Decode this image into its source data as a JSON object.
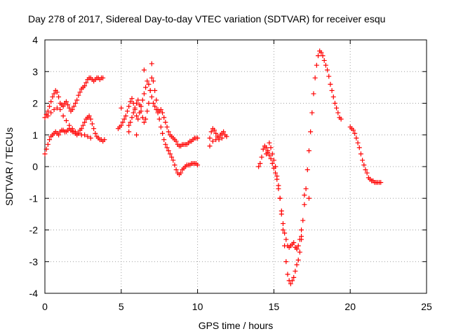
{
  "chart_data": {
    "type": "scatter",
    "title": "Day 278 of 2017, Sidereal Day-to-day VTEC variation (SDTVAR) for receiver esqu",
    "xlabel": "GPS time / hours",
    "ylabel": "SDTVAR / TECUs",
    "xlim": [
      0,
      25
    ],
    "ylim": [
      -4,
      4
    ],
    "xticks": [
      0,
      5,
      10,
      15,
      20,
      25
    ],
    "yticks": [
      -4,
      -3,
      -2,
      -1,
      0,
      1,
      2,
      3,
      4
    ],
    "grid": true,
    "marker": "plus",
    "marker_color": "#ff0000",
    "series": [
      {
        "x": [
          0.0,
          0.1,
          0.2,
          0.3,
          0.4,
          0.5,
          0.6,
          0.7,
          0.8,
          0.9,
          1.0,
          1.1,
          1.2,
          1.3,
          1.4,
          1.5,
          1.6,
          1.7,
          1.8,
          1.9,
          2.0,
          2.1,
          2.2,
          2.3,
          2.4,
          2.5,
          2.6,
          2.7,
          2.8,
          2.9,
          3.0,
          3.1,
          3.2,
          3.3,
          3.4,
          3.5,
          3.6,
          3.7,
          3.8
        ],
        "y": [
          1.55,
          1.65,
          1.75,
          1.9,
          2.05,
          2.2,
          2.3,
          2.4,
          2.35,
          2.2,
          2.0,
          1.95,
          1.9,
          2.0,
          2.05,
          1.95,
          1.85,
          1.75,
          1.8,
          1.9,
          2.0,
          2.1,
          2.25,
          2.35,
          2.45,
          2.5,
          2.55,
          2.65,
          2.75,
          2.8,
          2.8,
          2.75,
          2.7,
          2.75,
          2.8,
          2.8,
          2.75,
          2.8,
          2.8
        ]
      },
      {
        "x": [
          0.0,
          0.1,
          0.2,
          0.3,
          0.4,
          0.5,
          0.6,
          0.7,
          0.8,
          0.9,
          1.0,
          1.1,
          1.2,
          1.3,
          1.4,
          1.5,
          1.6,
          1.7,
          1.8,
          1.9,
          2.0,
          2.1,
          2.2,
          2.3,
          2.4,
          2.5,
          2.6,
          2.7,
          2.8,
          2.9,
          3.0,
          3.1,
          3.2,
          3.3,
          3.4,
          3.5,
          3.6,
          3.7,
          3.8,
          3.9
        ],
        "y": [
          0.4,
          0.55,
          0.7,
          0.85,
          0.95,
          1.0,
          1.05,
          1.1,
          1.05,
          1.0,
          1.1,
          1.15,
          1.15,
          1.1,
          1.1,
          1.15,
          1.2,
          1.15,
          1.1,
          1.1,
          1.05,
          1.0,
          1.05,
          1.15,
          1.2,
          1.3,
          1.4,
          1.5,
          1.55,
          1.6,
          1.5,
          1.35,
          1.2,
          1.05,
          0.95,
          0.9,
          0.85,
          0.85,
          0.8,
          0.85
        ]
      },
      {
        "x": [
          0.2,
          0.4,
          0.6,
          0.8,
          1.0,
          1.2,
          1.4,
          1.6,
          1.8,
          2.0,
          2.2,
          2.4,
          2.6,
          2.8,
          3.0
        ],
        "y": [
          1.6,
          1.7,
          1.8,
          1.85,
          1.8,
          1.6,
          1.45,
          1.3,
          1.2,
          1.1,
          1.05,
          1.0,
          1.0,
          0.95,
          0.9
        ]
      },
      {
        "x": [
          4.8,
          4.9,
          5.0,
          5.1,
          5.2,
          5.3,
          5.4,
          5.5,
          5.6,
          5.7,
          5.8,
          5.9,
          6.0,
          6.1,
          6.2,
          6.3,
          6.4,
          6.5,
          6.6,
          6.7,
          6.8,
          6.9,
          7.0,
          7.1,
          7.2,
          7.3,
          7.4,
          7.5,
          7.6,
          7.7,
          7.8,
          7.9,
          8.0,
          8.1,
          8.2,
          8.3,
          8.4,
          8.5,
          8.6,
          8.7,
          8.8,
          8.9,
          9.0,
          9.1,
          9.2,
          9.3,
          9.4,
          9.5,
          9.6,
          9.7,
          9.8,
          9.9,
          10.0
        ],
        "y": [
          1.2,
          1.25,
          1.3,
          1.4,
          1.5,
          1.6,
          1.75,
          1.9,
          2.05,
          2.15,
          2.0,
          1.8,
          1.6,
          1.5,
          1.7,
          1.9,
          2.1,
          2.3,
          2.5,
          2.7,
          2.6,
          2.4,
          2.2,
          2.0,
          1.9,
          1.8,
          1.7,
          1.75,
          1.8,
          1.7,
          1.55,
          1.4,
          1.25,
          1.1,
          1.0,
          0.95,
          0.9,
          0.85,
          0.8,
          0.7,
          0.65,
          0.65,
          0.7,
          0.7,
          0.7,
          0.7,
          0.75,
          0.8,
          0.8,
          0.85,
          0.9,
          0.9,
          0.9
        ]
      },
      {
        "x": [
          5.5,
          5.6,
          5.7,
          5.8,
          5.9,
          6.0,
          6.1,
          6.2,
          6.3,
          6.4,
          6.5,
          6.6,
          6.7,
          6.8,
          6.9,
          7.0,
          7.1,
          7.2,
          7.3,
          7.4,
          7.5,
          7.6,
          7.7,
          7.8,
          7.9,
          8.0,
          8.1,
          8.2,
          8.3,
          8.4,
          8.5,
          8.6,
          8.7,
          8.8,
          8.9,
          9.0,
          9.1,
          9.2,
          9.3,
          9.4,
          9.5,
          9.6,
          9.7,
          9.8,
          9.9,
          10.0
        ],
        "y": [
          1.3,
          1.4,
          1.55,
          1.7,
          1.85,
          2.0,
          2.1,
          1.95,
          1.75,
          1.55,
          1.4,
          1.5,
          1.75,
          2.0,
          2.4,
          2.8,
          2.7,
          2.4,
          2.1,
          1.8,
          1.5,
          1.25,
          1.05,
          0.85,
          0.7,
          0.6,
          0.5,
          0.4,
          0.3,
          0.2,
          0.05,
          -0.1,
          -0.2,
          -0.25,
          -0.2,
          -0.1,
          -0.05,
          0.0,
          0.05,
          0.05,
          0.05,
          0.1,
          0.1,
          0.1,
          0.1,
          0.05
        ]
      },
      {
        "x": [
          5.0,
          5.5,
          6.0,
          6.5,
          7.0
        ],
        "y": [
          1.85,
          1.1,
          1.0,
          3.05,
          3.25
        ]
      },
      {
        "x": [
          10.8,
          10.9,
          11.0,
          11.1,
          11.2,
          11.3,
          11.4,
          11.5,
          11.6,
          11.7,
          11.8,
          11.9
        ],
        "y": [
          0.9,
          1.1,
          1.2,
          1.15,
          1.05,
          0.95,
          0.9,
          1.0,
          1.05,
          1.1,
          1.0,
          0.95
        ]
      },
      {
        "x": [
          10.8,
          11.0,
          11.2,
          11.4,
          11.6
        ],
        "y": [
          0.65,
          0.8,
          0.85,
          0.85,
          0.9
        ]
      },
      {
        "x": [
          14.0,
          14.1,
          14.2,
          14.3,
          14.4,
          14.5,
          14.6,
          14.7,
          14.8,
          14.9,
          15.0,
          15.1,
          15.2,
          15.3,
          15.4,
          15.5,
          15.6,
          15.7,
          15.8,
          15.9,
          16.0,
          16.1,
          16.2,
          16.3,
          16.4,
          16.5,
          16.6,
          16.7,
          16.8
        ],
        "y": [
          0.0,
          0.1,
          0.3,
          0.55,
          0.65,
          0.6,
          0.5,
          0.75,
          0.6,
          0.4,
          0.2,
          0.0,
          -0.3,
          -0.6,
          -1.0,
          -1.4,
          -1.8,
          -2.1,
          -2.3,
          -2.5,
          -2.55,
          -2.5,
          -2.45,
          -2.4,
          -2.55,
          -2.6,
          -2.5,
          -2.3,
          -2.0
        ]
      },
      {
        "x": [
          14.5,
          14.6,
          14.7,
          14.8,
          14.9,
          15.0,
          15.1,
          15.2,
          15.3,
          15.4,
          15.5,
          15.6,
          15.7,
          15.8,
          15.9,
          16.0,
          16.1,
          16.2,
          16.3,
          16.4,
          16.5,
          16.6,
          16.7,
          16.8,
          16.9,
          17.0,
          17.1,
          17.2,
          17.3,
          17.4,
          17.5,
          17.6,
          17.7,
          17.8,
          17.9,
          18.0,
          18.1,
          18.2,
          18.3,
          18.4,
          18.5,
          18.6,
          18.7,
          18.8,
          18.9,
          19.0,
          19.1,
          19.2,
          19.3,
          19.4
        ],
        "y": [
          0.4,
          0.45,
          0.35,
          0.25,
          0.1,
          -0.05,
          -0.2,
          -0.4,
          -0.7,
          -1.0,
          -1.5,
          -2.0,
          -2.5,
          -3.0,
          -3.4,
          -3.6,
          -3.7,
          -3.6,
          -3.5,
          -3.3,
          -3.1,
          -2.95,
          -2.7,
          -2.2,
          -1.7,
          -1.2,
          -0.7,
          -0.1,
          0.5,
          1.1,
          1.7,
          2.3,
          2.8,
          3.2,
          3.5,
          3.65,
          3.6,
          3.5,
          3.35,
          3.2,
          3.05,
          2.85,
          2.6,
          2.4,
          2.2,
          2.0,
          1.85,
          1.7,
          1.55,
          1.5
        ]
      },
      {
        "x": [
          16.5,
          16.8,
          17.0,
          17.3
        ],
        "y": [
          -2.6,
          -2.3,
          -0.9,
          -1.0
        ]
      },
      {
        "x": [
          20.0,
          20.1,
          20.2,
          20.3,
          20.4,
          20.5,
          20.6,
          20.7,
          20.8,
          20.9,
          21.0,
          21.1,
          21.2,
          21.3,
          21.4,
          21.5,
          21.6,
          21.7,
          21.8,
          21.9,
          22.0
        ],
        "y": [
          1.25,
          1.2,
          1.15,
          1.05,
          0.9,
          0.75,
          0.6,
          0.4,
          0.2,
          0.05,
          -0.1,
          -0.2,
          -0.35,
          -0.4,
          -0.45,
          -0.45,
          -0.5,
          -0.5,
          -0.5,
          -0.5,
          -0.5
        ]
      }
    ]
  }
}
